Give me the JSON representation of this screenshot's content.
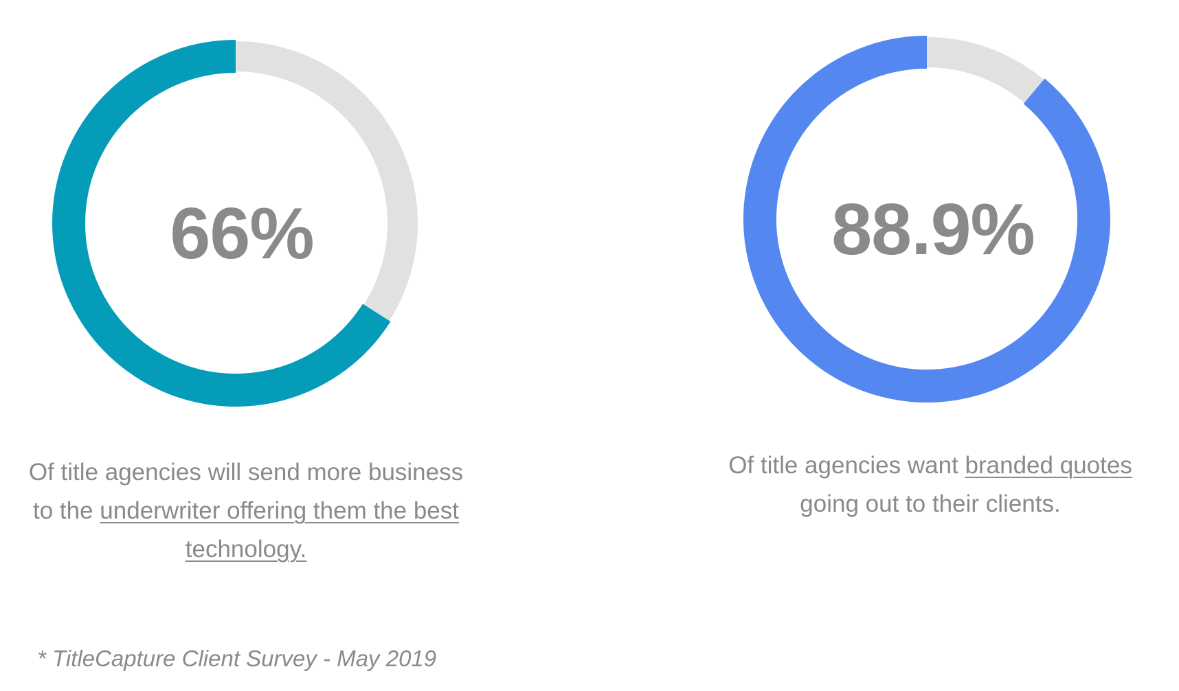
{
  "chart_data": [
    {
      "type": "pie",
      "values": [
        66,
        34
      ],
      "categories": [
        "Of title agencies will send more business to the underwriter offering them the best technology.",
        ""
      ],
      "label": "66%",
      "colors": [
        "#049cb8",
        "#e1e1e1"
      ],
      "caption": {
        "before": "Of title agencies will send more business to the ",
        "link": "underwriter offering them the best technology.",
        "after": ""
      }
    },
    {
      "type": "pie",
      "values": [
        88.9,
        11.1
      ],
      "categories": [
        "Of title agencies want branded quotes going out to their clients.",
        ""
      ],
      "label": "88.9%",
      "colors": [
        "#5487f0",
        "#e1e1e1"
      ],
      "caption": {
        "before": "Of title agencies want ",
        "link": "branded quotes",
        "after": " going out to their clients."
      }
    }
  ],
  "footnote": "* TitleCapture Client Survey - May 2019"
}
